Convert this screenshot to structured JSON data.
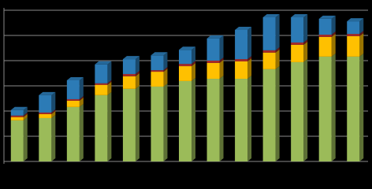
{
  "chart_data": {
    "type": "bar",
    "stacked": true,
    "categories": [
      null,
      null,
      null,
      null,
      null,
      null,
      null,
      null,
      null,
      null,
      null,
      null,
      null
    ],
    "series": [
      {
        "color": "#9bbb59",
        "values": [
          1.63,
          1.72,
          2.16,
          2.63,
          2.88,
          2.97,
          3.19,
          3.28,
          3.28,
          3.66,
          3.94,
          4.16,
          4.16
        ]
      },
      {
        "color": "#ffc000",
        "values": [
          0.13,
          0.16,
          0.25,
          0.41,
          0.5,
          0.59,
          0.59,
          0.63,
          0.69,
          0.66,
          0.69,
          0.78,
          0.81
        ]
      },
      {
        "color": "#a52a2a",
        "values": [
          0.06,
          0.06,
          0.06,
          0.06,
          0.09,
          0.06,
          0.09,
          0.09,
          0.09,
          0.09,
          0.09,
          0.09,
          0.09
        ]
      },
      {
        "color": "#2c7bb6",
        "values": [
          0.22,
          0.69,
          0.75,
          0.75,
          0.59,
          0.59,
          0.56,
          0.88,
          1.16,
          1.31,
          1.0,
          0.63,
          0.5
        ]
      }
    ],
    "ylim": [
      0,
      6
    ],
    "yticks": [
      0,
      1,
      2,
      3,
      4,
      5,
      6
    ],
    "grid": true
  }
}
